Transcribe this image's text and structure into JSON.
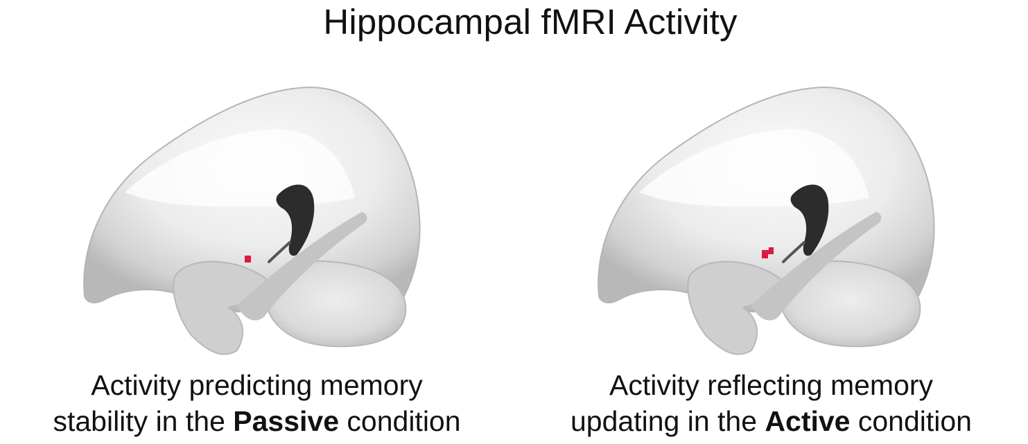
{
  "title": "Hippocampal fMRI Activity",
  "colors": {
    "activation": "#e0183c",
    "brain_light": "#f7f7f7",
    "brain_mid": "#d7d7d7",
    "brain_dark": "#2c2c2c"
  },
  "panels": [
    {
      "caption_line1": "Activity predicting memory",
      "caption_line2_pre": "stability in the ",
      "caption_line2_bold": "Passive",
      "caption_line2_post": " condition"
    },
    {
      "caption_line1": "Activity reflecting memory",
      "caption_line2_pre": "updating in the ",
      "caption_line2_bold": "Active",
      "caption_line2_post": " condition"
    }
  ]
}
